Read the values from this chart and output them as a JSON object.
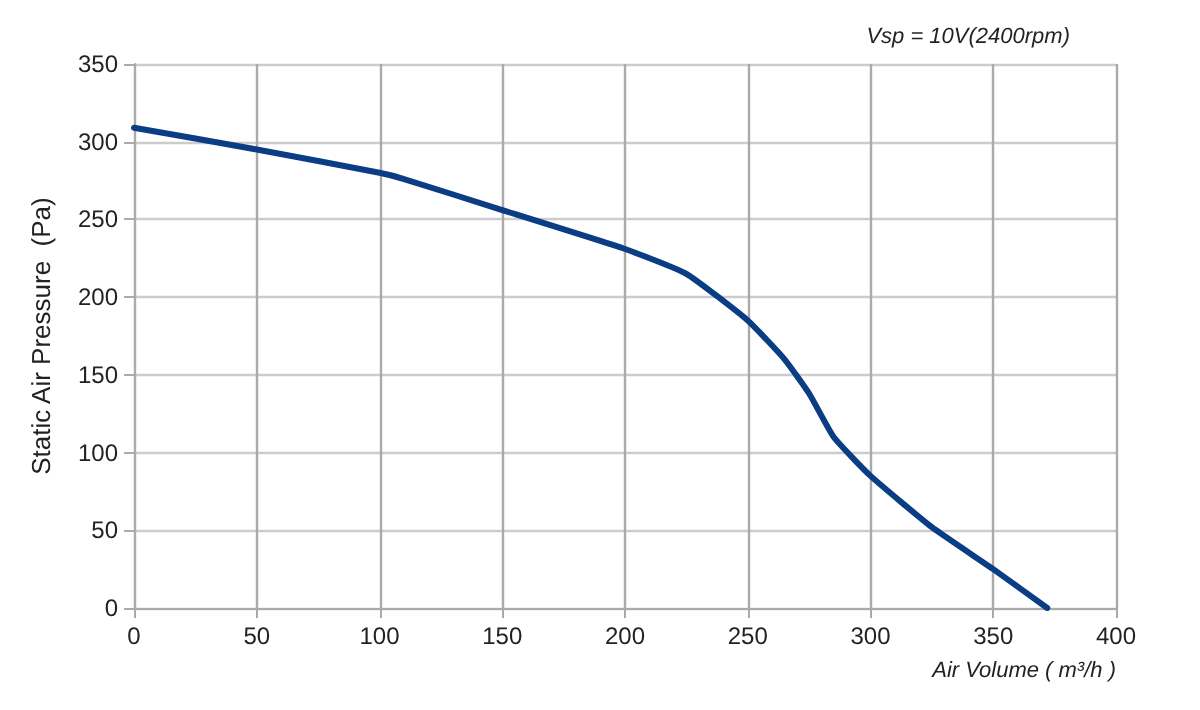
{
  "chart_data": {
    "type": "line",
    "subtitle": "Vsp = 10V(2400rpm)",
    "xlabel": "Air Volume ( m³/h )",
    "ylabel": "Static Air Pressure  (Pa)",
    "x": [
      0,
      50,
      100,
      110,
      150,
      200,
      225,
      250,
      265,
      275,
      285,
      300,
      325,
      350,
      372
    ],
    "series": [
      {
        "color": "#0b3d85",
        "values": [
          309,
          295,
          280,
          276,
          256,
          231,
          215,
          185,
          160,
          138,
          110,
          85,
          52,
          25,
          0
        ]
      }
    ],
    "xlim": [
      0,
      400
    ],
    "xticks": [
      0,
      50,
      100,
      150,
      200,
      250,
      300,
      350,
      400
    ],
    "ylim": [
      0,
      350
    ],
    "yticks": [
      0,
      50,
      100,
      150,
      200,
      250,
      300,
      350
    ],
    "grid": true,
    "marker": "none",
    "line_style": "solid"
  }
}
